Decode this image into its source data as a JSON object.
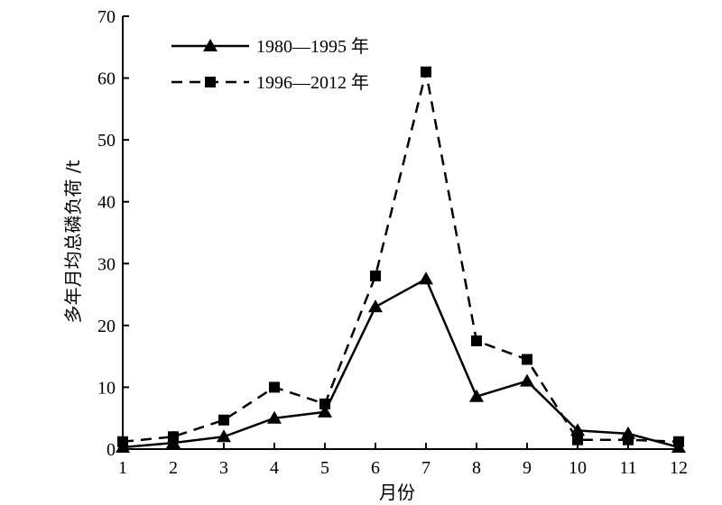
{
  "chart_data": {
    "type": "line",
    "xlabel": "月份",
    "ylabel": "多年月均总磷负荷 /t",
    "x": [
      1,
      2,
      3,
      4,
      5,
      6,
      7,
      8,
      9,
      10,
      11,
      12
    ],
    "xlim": [
      1,
      12
    ],
    "ylim": [
      0,
      70
    ],
    "yticks": [
      0,
      10,
      20,
      30,
      40,
      50,
      60,
      70
    ],
    "grid": false,
    "legend_position": "top-left",
    "series": [
      {
        "name": "1980—1995 年",
        "line_style": "solid",
        "marker": "triangle",
        "values": [
          0.3,
          1.0,
          2.0,
          5.0,
          6.0,
          23.0,
          27.5,
          8.5,
          11.0,
          3.0,
          2.5,
          0.3
        ]
      },
      {
        "name": "1996—2012 年",
        "line_style": "dashed",
        "marker": "square",
        "values": [
          1.2,
          2.0,
          4.7,
          10.0,
          7.3,
          28.0,
          61.0,
          17.5,
          14.5,
          1.5,
          1.5,
          1.2
        ]
      }
    ]
  }
}
